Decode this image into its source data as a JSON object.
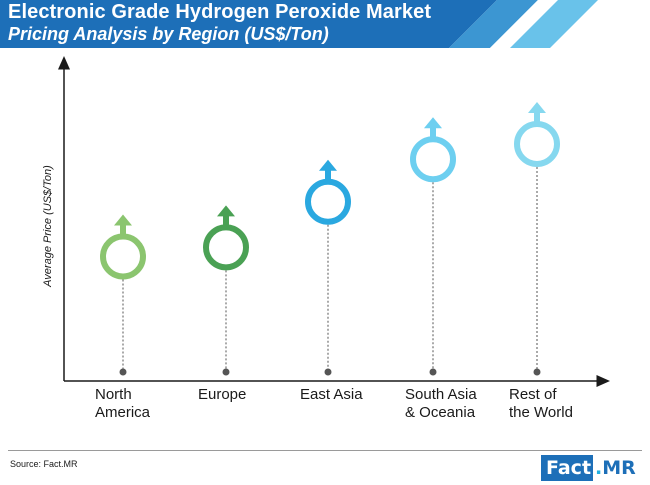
{
  "header": {
    "title": "Electronic Grade Hydrogen Peroxide Market",
    "subtitle": "Pricing Analysis by Region (US$/Ton)"
  },
  "chart_data": {
    "type": "scatter",
    "categories": [
      "North\nAmerica",
      "Europe",
      "East Asia",
      "South Asia\n& Oceania",
      "Rest of\nthe World"
    ],
    "values": [
      38,
      41,
      56,
      70,
      75
    ],
    "colors": [
      "#8bc56f",
      "#4aa154",
      "#2aa8e0",
      "#6dcff0",
      "#86d8ef"
    ],
    "title": "Pricing Analysis by Region (US$/Ton)",
    "xlabel": "",
    "ylabel": "Average Price (US$/Ton)",
    "ylim": [
      0,
      100
    ],
    "grid": false,
    "legend": "none",
    "marker": "circle-with-arrow",
    "drop_lines": true
  },
  "footer": {
    "source": "Source: Fact.MR",
    "logo_fact": "Fact",
    "logo_dot": ".",
    "logo_mr": "MR"
  }
}
